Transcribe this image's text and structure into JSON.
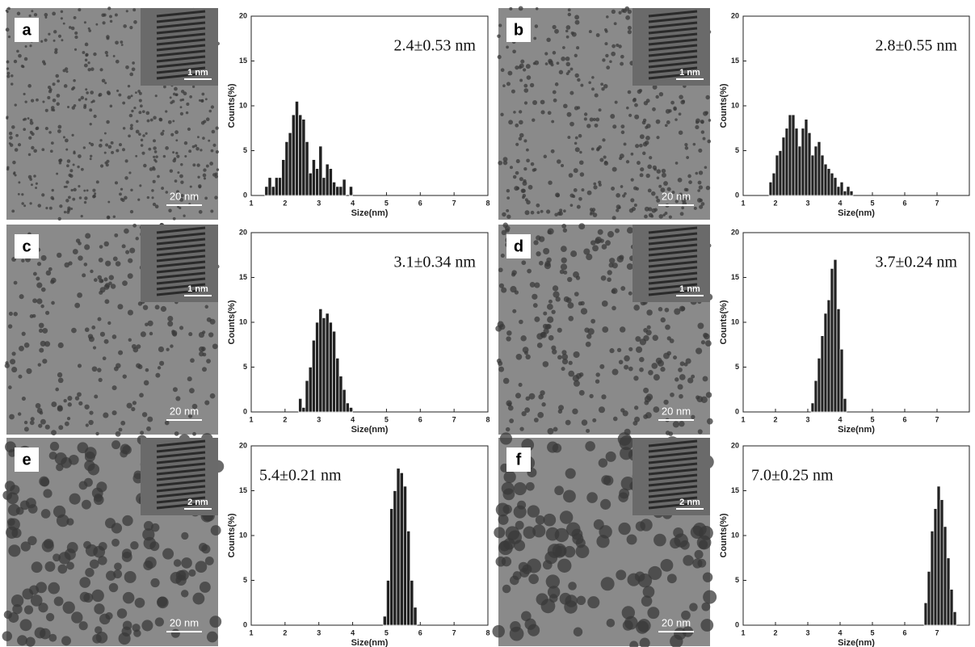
{
  "panels": [
    {
      "label": "a",
      "scale_bar": "20 nm",
      "inset_scale_bar": "1 nm"
    },
    {
      "label": "b",
      "scale_bar": "20 nm",
      "inset_scale_bar": "1 nm"
    },
    {
      "label": "c",
      "scale_bar": "20 nm",
      "inset_scale_bar": "1 nm"
    },
    {
      "label": "d",
      "scale_bar": "20 nm",
      "inset_scale_bar": "1 nm"
    },
    {
      "label": "e",
      "scale_bar": "20 nm",
      "inset_scale_bar": "2 nm"
    },
    {
      "label": "f",
      "scale_bar": "20 nm",
      "inset_scale_bar": "2 nm"
    }
  ],
  "chart_data": [
    {
      "type": "histogram",
      "annotation": "2.4±0.53 nm",
      "x_label": "Size(nm)",
      "y_label": "Counts(%)",
      "color": "#222",
      "bins": [
        1.4,
        1.5,
        1.6,
        1.7,
        1.8,
        1.9,
        2.0,
        2.1,
        2.2,
        2.3,
        2.4,
        2.5,
        2.6,
        2.7,
        2.8,
        2.9,
        3.0,
        3.1,
        3.2,
        3.3,
        3.4,
        3.5,
        3.6,
        3.7,
        3.8,
        3.9,
        4.0
      ],
      "values": [
        1,
        2,
        1,
        2,
        2,
        4,
        6,
        7,
        9,
        10.5,
        9,
        8.5,
        6,
        2.5,
        4,
        3,
        5.5,
        2,
        3.5,
        3,
        1.5,
        1,
        1,
        1.8,
        0,
        1
      ],
      "xlim": [
        1,
        8
      ],
      "xticks": [
        1,
        2,
        3,
        4,
        5,
        6,
        7,
        8
      ],
      "ylim": [
        0,
        20
      ],
      "yticks": [
        0,
        5,
        10,
        15,
        20
      ]
    },
    {
      "type": "histogram",
      "annotation": "2.8±0.55 nm",
      "x_label": "Size(nm)",
      "y_label": "Counts(%)",
      "color": "#222",
      "bins": [
        1.8,
        1.9,
        2.0,
        2.1,
        2.2,
        2.3,
        2.4,
        2.5,
        2.6,
        2.7,
        2.8,
        2.9,
        3.0,
        3.1,
        3.2,
        3.3,
        3.4,
        3.5,
        3.6,
        3.7,
        3.8,
        3.9,
        4.0,
        4.1,
        4.2,
        4.3,
        4.4
      ],
      "values": [
        1.5,
        2.5,
        4.5,
        5,
        6.5,
        7.5,
        9,
        9,
        7.5,
        5.5,
        7.5,
        8.5,
        7,
        4.5,
        5.5,
        6,
        4.5,
        3.5,
        3,
        2.5,
        2,
        1,
        1.5,
        0.5,
        1,
        0.5
      ],
      "xlim": [
        1,
        8
      ],
      "xticks": [
        1,
        2,
        3,
        4,
        5,
        6,
        7
      ],
      "ylim": [
        0,
        20
      ],
      "yticks": [
        0,
        5,
        10,
        15,
        20
      ]
    },
    {
      "type": "histogram",
      "annotation": "3.1±0.34 nm",
      "x_label": "Size(nm)",
      "y_label": "Counts(%)",
      "color": "#222",
      "bins": [
        2.4,
        2.5,
        2.6,
        2.7,
        2.8,
        2.9,
        3.0,
        3.1,
        3.2,
        3.3,
        3.4,
        3.5,
        3.6,
        3.7,
        3.8,
        3.9,
        4.0
      ],
      "values": [
        1.5,
        0.5,
        3.5,
        5,
        8,
        10,
        11.5,
        10.5,
        11,
        10,
        9,
        6,
        4,
        2.5,
        1,
        0.5
      ],
      "xlim": [
        1,
        8
      ],
      "xticks": [
        1,
        2,
        3,
        4,
        5,
        6,
        7,
        8
      ],
      "ylim": [
        0,
        20
      ],
      "yticks": [
        0,
        5,
        10,
        15,
        20
      ]
    },
    {
      "type": "histogram",
      "annotation": "3.7±0.24 nm",
      "x_label": "Size(nm)",
      "y_label": "Counts(%)",
      "color": "#222",
      "bins": [
        3.1,
        3.2,
        3.3,
        3.4,
        3.5,
        3.6,
        3.7,
        3.8,
        3.9,
        4.0,
        4.1,
        4.2
      ],
      "values": [
        1,
        3.5,
        6,
        8.5,
        11,
        12.5,
        16,
        17,
        11.5,
        7,
        1.5
      ],
      "xlim": [
        1,
        8
      ],
      "xticks": [
        1,
        2,
        3,
        4,
        5,
        6,
        7
      ],
      "ylim": [
        0,
        20
      ],
      "yticks": [
        0,
        5,
        10,
        15,
        20
      ]
    },
    {
      "type": "histogram",
      "annotation": "5.4±0.21 nm",
      "x_label": "Size(nm)",
      "y_label": "Counts(%)",
      "color": "#222",
      "bins": [
        4.9,
        5.0,
        5.1,
        5.2,
        5.3,
        5.4,
        5.5,
        5.6,
        5.7,
        5.8,
        5.9
      ],
      "values": [
        1,
        5,
        13,
        15,
        17.5,
        17,
        15.5,
        10.5,
        5,
        2
      ],
      "xlim": [
        1,
        8
      ],
      "xticks": [
        1,
        2,
        3,
        4,
        5,
        6,
        7,
        8
      ],
      "ylim": [
        0,
        20
      ],
      "yticks": [
        0,
        5,
        10,
        15,
        20
      ]
    },
    {
      "type": "histogram",
      "annotation": "7.0±0.25 nm",
      "x_label": "Size(nm)",
      "y_label": "Counts(%)",
      "color": "#222",
      "bins": [
        6.6,
        6.7,
        6.8,
        6.9,
        7.0,
        7.1,
        7.2,
        7.3,
        7.4,
        7.5,
        7.6
      ],
      "values": [
        2.5,
        6,
        10.5,
        13,
        15.5,
        14,
        11,
        7.5,
        4,
        1.5
      ],
      "xlim": [
        1,
        8
      ],
      "xticks": [
        1,
        2,
        3,
        4,
        5,
        6,
        7
      ],
      "ylim": [
        0,
        20
      ],
      "yticks": [
        0,
        5,
        10,
        15,
        20
      ]
    }
  ]
}
